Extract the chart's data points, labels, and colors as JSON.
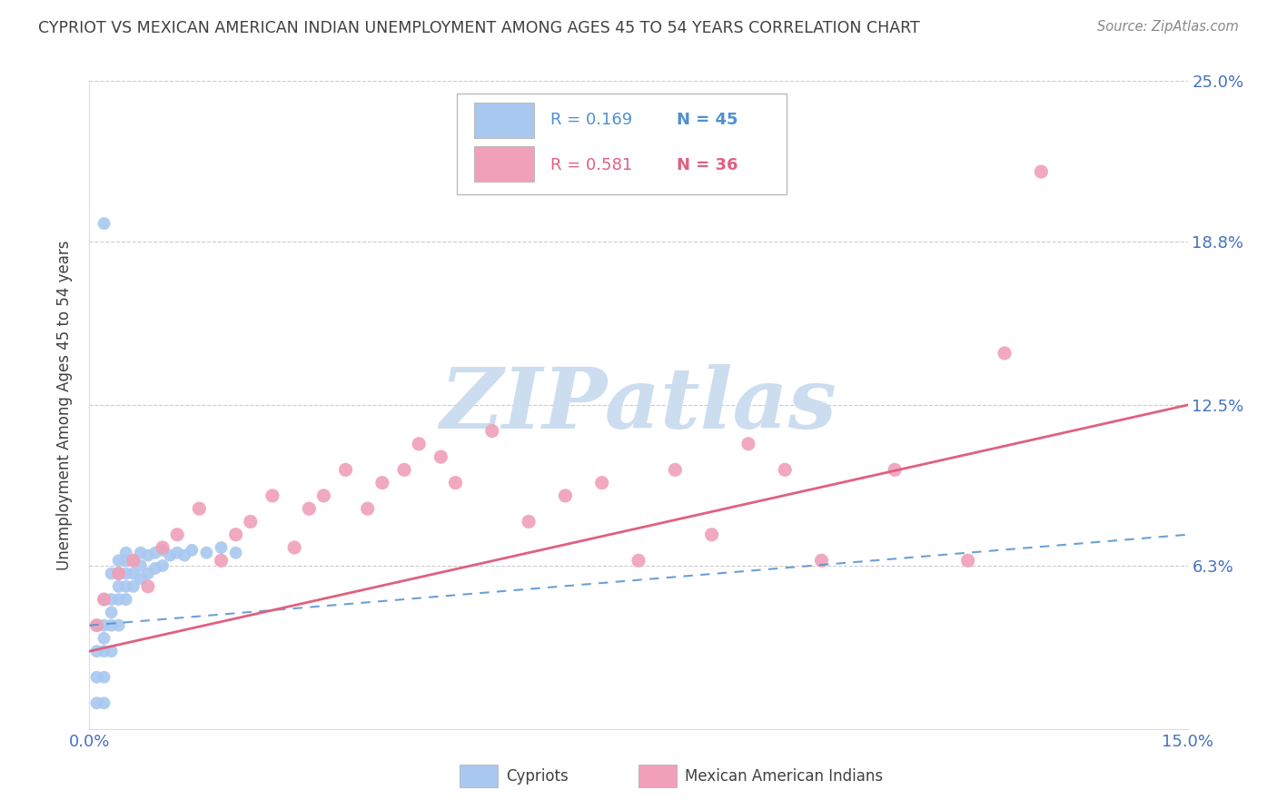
{
  "title": "CYPRIOT VS MEXICAN AMERICAN INDIAN UNEMPLOYMENT AMONG AGES 45 TO 54 YEARS CORRELATION CHART",
  "source": "Source: ZipAtlas.com",
  "ylabel": "Unemployment Among Ages 45 to 54 years",
  "xlim": [
    0.0,
    0.15
  ],
  "ylim": [
    0.0,
    0.25
  ],
  "xtick_pos": [
    0.0,
    0.025,
    0.05,
    0.075,
    0.1,
    0.125,
    0.15
  ],
  "xticklabels": [
    "0.0%",
    "",
    "",
    "",
    "",
    "",
    "15.0%"
  ],
  "ytick_pos": [
    0.0,
    0.063,
    0.125,
    0.188,
    0.25
  ],
  "right_ytick_labels": [
    "6.3%",
    "12.5%",
    "18.8%",
    "25.0%"
  ],
  "right_ytick_pos": [
    0.063,
    0.125,
    0.188,
    0.25
  ],
  "grid_color": "#cccccc",
  "background_color": "#ffffff",
  "watermark": "ZIPatlas",
  "watermark_color": "#ccddf0",
  "legend_R1": "R = 0.169",
  "legend_N1": "N = 45",
  "legend_R2": "R = 0.581",
  "legend_N2": "N = 36",
  "blue_color": "#a8c8f0",
  "pink_color": "#f0a0b8",
  "blue_line_color": "#5090d0",
  "pink_line_color": "#e06080",
  "axis_label_color": "#4472c4",
  "title_color": "#404040",
  "source_color": "#888888",
  "cypriot_x": [
    0.001,
    0.001,
    0.001,
    0.001,
    0.002,
    0.002,
    0.002,
    0.002,
    0.002,
    0.002,
    0.003,
    0.003,
    0.003,
    0.003,
    0.003,
    0.004,
    0.004,
    0.004,
    0.004,
    0.004,
    0.005,
    0.005,
    0.005,
    0.005,
    0.005,
    0.006,
    0.006,
    0.006,
    0.007,
    0.007,
    0.007,
    0.008,
    0.008,
    0.009,
    0.009,
    0.01,
    0.01,
    0.011,
    0.012,
    0.013,
    0.014,
    0.016,
    0.018,
    0.02,
    0.002
  ],
  "cypriot_y": [
    0.01,
    0.02,
    0.03,
    0.04,
    0.01,
    0.02,
    0.03,
    0.035,
    0.04,
    0.05,
    0.03,
    0.04,
    0.045,
    0.05,
    0.06,
    0.04,
    0.05,
    0.055,
    0.06,
    0.065,
    0.05,
    0.055,
    0.06,
    0.065,
    0.068,
    0.055,
    0.06,
    0.065,
    0.058,
    0.063,
    0.068,
    0.06,
    0.067,
    0.062,
    0.068,
    0.063,
    0.069,
    0.067,
    0.068,
    0.067,
    0.069,
    0.068,
    0.07,
    0.068,
    0.195
  ],
  "mexican_x": [
    0.001,
    0.002,
    0.004,
    0.006,
    0.008,
    0.01,
    0.012,
    0.015,
    0.018,
    0.02,
    0.022,
    0.025,
    0.028,
    0.03,
    0.032,
    0.035,
    0.038,
    0.04,
    0.043,
    0.045,
    0.048,
    0.05,
    0.055,
    0.06,
    0.065,
    0.07,
    0.075,
    0.08,
    0.085,
    0.09,
    0.095,
    0.1,
    0.11,
    0.12,
    0.125,
    0.13
  ],
  "mexican_y": [
    0.04,
    0.05,
    0.06,
    0.065,
    0.055,
    0.07,
    0.075,
    0.085,
    0.065,
    0.075,
    0.08,
    0.09,
    0.07,
    0.085,
    0.09,
    0.1,
    0.085,
    0.095,
    0.1,
    0.11,
    0.105,
    0.095,
    0.115,
    0.08,
    0.09,
    0.095,
    0.065,
    0.1,
    0.075,
    0.11,
    0.1,
    0.065,
    0.1,
    0.065,
    0.145,
    0.215
  ],
  "cypriot_trendline_x": [
    0.0,
    0.15
  ],
  "cypriot_trendline_y": [
    0.04,
    0.075
  ],
  "mexican_trendline_x": [
    0.0,
    0.15
  ],
  "mexican_trendline_y": [
    0.03,
    0.125
  ]
}
